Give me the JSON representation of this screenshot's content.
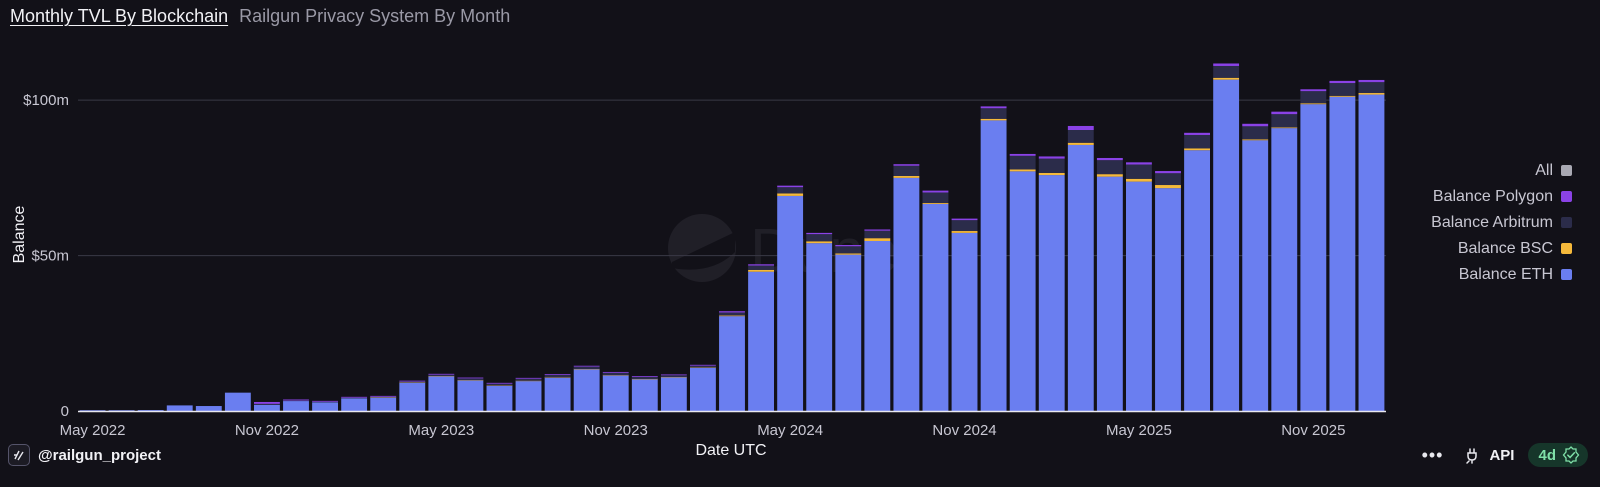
{
  "header": {
    "title": "Monthly TVL By Blockchain",
    "subtitle": "Railgun Privacy System By Month"
  },
  "watermark": "Dune",
  "legend": [
    {
      "label": "All",
      "color": "#a9a9b3"
    },
    {
      "label": "Balance Polygon",
      "color": "#8a42e6"
    },
    {
      "label": "Balance Arbitrum",
      "color": "#2b2c4a"
    },
    {
      "label": "Balance BSC",
      "color": "#f5b93b"
    },
    {
      "label": "Balance ETH",
      "color": "#6a7ef0"
    }
  ],
  "footer": {
    "author": "@railgun_project",
    "more_label": "•••",
    "api_label": "API",
    "age_label": "4d"
  },
  "chart_data": {
    "type": "bar",
    "stacked": true,
    "title": "Monthly TVL By Blockchain",
    "subtitle": "Railgun Privacy System By Month",
    "xlabel": "Date UTC",
    "ylabel": "Balance",
    "ylim": [
      0,
      120
    ],
    "y_unit": "$m",
    "yticks": [
      {
        "value": 0,
        "label": "0"
      },
      {
        "value": 50,
        "label": "$50m"
      },
      {
        "value": 100,
        "label": "$100m"
      }
    ],
    "xticks": [
      {
        "index": 0,
        "label": "May 2022"
      },
      {
        "index": 6,
        "label": "Nov 2022"
      },
      {
        "index": 12,
        "label": "May 2023"
      },
      {
        "index": 18,
        "label": "Nov 2023"
      },
      {
        "index": 24,
        "label": "May 2024"
      },
      {
        "index": 30,
        "label": "Nov 2024"
      },
      {
        "index": 36,
        "label": "May 2025"
      },
      {
        "index": 42,
        "label": "Nov 2025"
      }
    ],
    "grid": true,
    "legend_position": "right",
    "categories": [
      "2022-05",
      "2022-06",
      "2022-07",
      "2022-08",
      "2022-09",
      "2022-10",
      "2022-11",
      "2022-12",
      "2023-01",
      "2023-02",
      "2023-03",
      "2023-04",
      "2023-05",
      "2023-06",
      "2023-07",
      "2023-08",
      "2023-09",
      "2023-10",
      "2023-11",
      "2023-12",
      "2024-01",
      "2024-02",
      "2024-03",
      "2024-04",
      "2024-05",
      "2024-06",
      "2024-07",
      "2024-08",
      "2024-09",
      "2024-10",
      "2024-11",
      "2024-12",
      "2025-01",
      "2025-02",
      "2025-03",
      "2025-04",
      "2025-05",
      "2025-06",
      "2025-07",
      "2025-08",
      "2025-09",
      "2025-10",
      "2025-11",
      "2025-12",
      "2026-01"
    ],
    "series": [
      {
        "name": "Balance ETH",
        "color": "#6a7ef0",
        "values": [
          0.1,
          0.2,
          0.3,
          1.8,
          1.6,
          5.9,
          2.0,
          3.2,
          2.8,
          4.1,
          4.3,
          9.1,
          11.1,
          9.8,
          8.1,
          9.6,
          10.7,
          13.4,
          11.4,
          10.2,
          10.8,
          13.9,
          30.5,
          44.8,
          69.2,
          54.0,
          50.3,
          54.7,
          75.0,
          66.6,
          57.3,
          93.5,
          77.1,
          75.9,
          85.6,
          75.4,
          73.8,
          71.7,
          83.9,
          106.6,
          87.1,
          91.0,
          98.7,
          101.1,
          101.8
        ]
      },
      {
        "name": "Balance BSC",
        "color": "#f5b93b",
        "values": [
          0,
          0,
          0,
          0,
          0,
          0,
          0,
          0,
          0,
          0,
          0.1,
          0.1,
          0.1,
          0.1,
          0.1,
          0.1,
          0.1,
          0.1,
          0.1,
          0.1,
          0.1,
          0.1,
          0.2,
          0.6,
          0.8,
          0.6,
          0.4,
          0.9,
          0.6,
          0.3,
          0.6,
          0.5,
          0.6,
          0.7,
          0.7,
          0.8,
          0.9,
          1.0,
          0.6,
          0.6,
          0.3,
          0.2,
          0.3,
          0.3,
          0.5
        ]
      },
      {
        "name": "Balance Arbitrum",
        "color": "#2b2c4a",
        "values": [
          0,
          0,
          0,
          0,
          0,
          0,
          0.3,
          0.2,
          0.2,
          0.2,
          0.2,
          0.3,
          0.5,
          0.6,
          0.6,
          0.7,
          0.8,
          0.8,
          0.8,
          0.7,
          0.6,
          0.6,
          1.0,
          1.4,
          2.0,
          2.3,
          2.3,
          2.4,
          3.3,
          3.4,
          3.5,
          3.4,
          4.4,
          4.6,
          4.1,
          4.5,
          4.6,
          3.8,
          4.3,
          3.8,
          4.2,
          4.3,
          3.9,
          4.1,
          3.5
        ]
      },
      {
        "name": "Balance Polygon",
        "color": "#8a42e6",
        "values": [
          0,
          0,
          0,
          0,
          0,
          0,
          0.6,
          0.3,
          0.2,
          0.2,
          0.2,
          0.1,
          0.1,
          0.1,
          0.1,
          0.1,
          0.1,
          0.1,
          0.2,
          0.2,
          0.2,
          0.2,
          0.4,
          0.4,
          0.5,
          0.4,
          0.4,
          0.4,
          0.5,
          0.6,
          0.5,
          0.6,
          0.6,
          0.7,
          1.3,
          0.7,
          0.7,
          0.7,
          0.7,
          0.8,
          0.8,
          0.8,
          0.6,
          0.7,
          0.7
        ]
      }
    ]
  }
}
